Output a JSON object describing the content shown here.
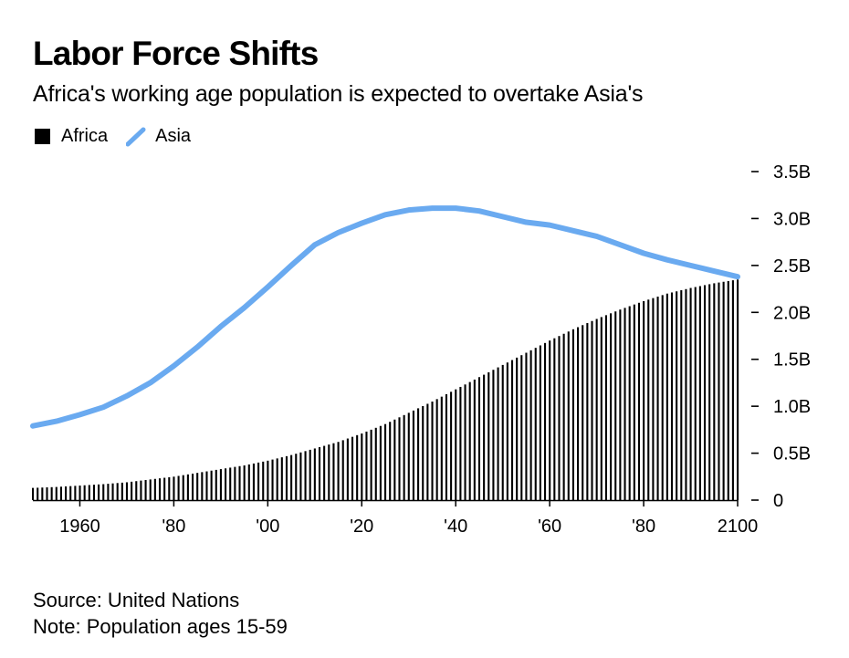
{
  "title": "Labor Force Shifts",
  "subtitle": "Africa's working age population is expected to overtake Asia's",
  "legend": {
    "africa_label": "Africa",
    "asia_label": "Asia"
  },
  "footer": {
    "source": "Source: United Nations",
    "note": "Note: Population ages 15-59"
  },
  "colors": {
    "africa": "#000000",
    "asia": "#6aaaf0"
  },
  "chart_data": {
    "type": "bar",
    "x_range": [
      1950,
      2100
    ],
    "ylim": [
      0,
      3.5
    ],
    "y_ticks": [
      {
        "value": 3.5,
        "label": "3.5B"
      },
      {
        "value": 3.0,
        "label": "3.0B"
      },
      {
        "value": 2.5,
        "label": "2.5B"
      },
      {
        "value": 2.0,
        "label": "2.0B"
      },
      {
        "value": 1.5,
        "label": "1.5B"
      },
      {
        "value": 1.0,
        "label": "1.0B"
      },
      {
        "value": 0.5,
        "label": "0.5B"
      },
      {
        "value": 0,
        "label": "0"
      }
    ],
    "x_ticks": [
      {
        "value": 1960,
        "label": "1960"
      },
      {
        "value": 1980,
        "label": "'80"
      },
      {
        "value": 2000,
        "label": "'00"
      },
      {
        "value": 2020,
        "label": "'20"
      },
      {
        "value": 2040,
        "label": "'40"
      },
      {
        "value": 2060,
        "label": "'60"
      },
      {
        "value": 2080,
        "label": "'80"
      },
      {
        "value": 2100,
        "label": "2100"
      }
    ],
    "series": [
      {
        "name": "Africa",
        "kind": "bar",
        "points": [
          [
            1950,
            0.13
          ],
          [
            1955,
            0.14
          ],
          [
            1960,
            0.155
          ],
          [
            1965,
            0.17
          ],
          [
            1970,
            0.19
          ],
          [
            1975,
            0.22
          ],
          [
            1980,
            0.25
          ],
          [
            1985,
            0.29
          ],
          [
            1990,
            0.33
          ],
          [
            1995,
            0.37
          ],
          [
            2000,
            0.42
          ],
          [
            2005,
            0.48
          ],
          [
            2010,
            0.55
          ],
          [
            2015,
            0.62
          ],
          [
            2020,
            0.71
          ],
          [
            2025,
            0.81
          ],
          [
            2030,
            0.93
          ],
          [
            2035,
            1.05
          ],
          [
            2040,
            1.18
          ],
          [
            2045,
            1.31
          ],
          [
            2050,
            1.44
          ],
          [
            2055,
            1.57
          ],
          [
            2060,
            1.7
          ],
          [
            2065,
            1.82
          ],
          [
            2070,
            1.93
          ],
          [
            2075,
            2.03
          ],
          [
            2080,
            2.12
          ],
          [
            2085,
            2.2
          ],
          [
            2090,
            2.26
          ],
          [
            2095,
            2.31
          ],
          [
            2100,
            2.35
          ]
        ]
      },
      {
        "name": "Asia",
        "kind": "line",
        "points": [
          [
            1950,
            0.79
          ],
          [
            1955,
            0.84
          ],
          [
            1960,
            0.91
          ],
          [
            1965,
            0.99
          ],
          [
            1970,
            1.11
          ],
          [
            1975,
            1.25
          ],
          [
            1980,
            1.43
          ],
          [
            1985,
            1.63
          ],
          [
            1990,
            1.85
          ],
          [
            1995,
            2.05
          ],
          [
            2000,
            2.27
          ],
          [
            2005,
            2.5
          ],
          [
            2010,
            2.72
          ],
          [
            2015,
            2.85
          ],
          [
            2020,
            2.95
          ],
          [
            2025,
            3.04
          ],
          [
            2030,
            3.09
          ],
          [
            2035,
            3.11
          ],
          [
            2040,
            3.11
          ],
          [
            2045,
            3.08
          ],
          [
            2050,
            3.02
          ],
          [
            2055,
            2.96
          ],
          [
            2060,
            2.93
          ],
          [
            2065,
            2.87
          ],
          [
            2070,
            2.81
          ],
          [
            2075,
            2.72
          ],
          [
            2080,
            2.63
          ],
          [
            2085,
            2.56
          ],
          [
            2090,
            2.5
          ],
          [
            2095,
            2.44
          ],
          [
            2100,
            2.38
          ]
        ]
      }
    ]
  }
}
